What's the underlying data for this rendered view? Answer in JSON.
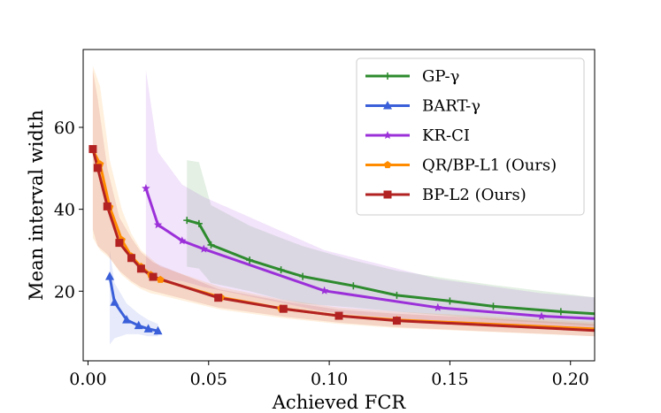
{
  "chart_data": {
    "type": "line",
    "title": "",
    "xlabel": "Achieved FCR",
    "ylabel": "Mean interval width",
    "xlim": [
      -0.002,
      0.21
    ],
    "ylim": [
      3,
      79
    ],
    "xticks": [
      0.0,
      0.05,
      0.1,
      0.15,
      0.2
    ],
    "xtick_labels": [
      "0.00",
      "0.05",
      "0.10",
      "0.15",
      "0.20"
    ],
    "yticks": [
      20,
      40,
      60
    ],
    "ytick_labels": [
      "20",
      "40",
      "60"
    ],
    "grid": false,
    "legend_position": "top-right",
    "series": [
      {
        "name": "GP-γ",
        "color": "#2e8b2e",
        "marker": "plus",
        "x": [
          0.041,
          0.046,
          0.051,
          0.067,
          0.08,
          0.089,
          0.11,
          0.128,
          0.15,
          0.168,
          0.196,
          0.21
        ],
        "y": [
          37.3,
          36.5,
          31.3,
          27.6,
          25.2,
          23.6,
          21.3,
          19.0,
          17.6,
          16.3,
          15.0,
          14.5
        ],
        "band_upper": [
          52.0,
          51.5,
          41.0,
          36.0,
          33.0,
          31.0,
          27.5,
          25.0,
          23.0,
          21.5,
          19.5,
          18.5
        ],
        "band_lower": [
          26.0,
          25.5,
          22.0,
          20.0,
          18.0,
          17.0,
          16.0,
          15.0,
          14.0,
          13.0,
          12.0,
          11.5
        ]
      },
      {
        "name": "BART-γ",
        "color": "#3a5fd9",
        "marker": "triangle",
        "x": [
          0.009,
          0.011,
          0.016,
          0.021,
          0.025,
          0.029
        ],
        "y": [
          23.6,
          17.3,
          13.0,
          11.6,
          10.8,
          10.3
        ],
        "band_upper": [
          30.0,
          22.0,
          17.0,
          14.5,
          13.0,
          12.0
        ],
        "band_lower": [
          7.0,
          8.5,
          9.5,
          9.5,
          9.0,
          9.0
        ]
      },
      {
        "name": "KR-CI",
        "color": "#9b30d9",
        "marker": "star",
        "x": [
          0.024,
          0.029,
          0.039,
          0.048,
          0.098,
          0.145,
          0.188,
          0.21
        ],
        "y": [
          45.1,
          36.2,
          32.3,
          30.3,
          20.1,
          16.0,
          13.9,
          13.3
        ],
        "band_upper": [
          74.0,
          54.0,
          46.0,
          43.0,
          30.0,
          23.0,
          19.5,
          18.5
        ],
        "band_lower": [
          24.0,
          23.0,
          22.5,
          21.0,
          15.0,
          12.5,
          11.0,
          10.5
        ]
      },
      {
        "name": "QR/BP-L1 (Ours)",
        "color": "#ff8c00",
        "marker": "pentagon",
        "x": [
          0.002,
          0.005,
          0.009,
          0.014,
          0.018,
          0.022,
          0.026,
          0.03,
          0.055,
          0.08,
          0.104,
          0.128,
          0.21
        ],
        "y": [
          54.5,
          51.0,
          40.5,
          32.5,
          28.5,
          26.0,
          24.0,
          22.8,
          18.5,
          15.8,
          14.0,
          13.0,
          10.8
        ],
        "band_upper": [
          75.0,
          70.0,
          52.0,
          40.0,
          34.0,
          30.0,
          28.0,
          26.0,
          21.0,
          18.0,
          16.0,
          15.0,
          12.5
        ],
        "band_lower": [
          33.0,
          30.0,
          28.0,
          24.0,
          22.0,
          20.5,
          19.5,
          19.0,
          15.5,
          13.5,
          12.0,
          11.0,
          9.0
        ]
      },
      {
        "name": "BP-L2 (Ours)",
        "color": "#b22222",
        "marker": "square",
        "x": [
          0.002,
          0.004,
          0.008,
          0.013,
          0.018,
          0.022,
          0.027,
          0.054,
          0.081,
          0.104,
          0.128,
          0.21
        ],
        "y": [
          54.7,
          50.1,
          40.7,
          31.8,
          28.1,
          25.5,
          23.5,
          18.4,
          15.7,
          14.0,
          12.8,
          10.4
        ],
        "band_upper": [
          74.0,
          67.0,
          50.0,
          38.0,
          33.0,
          29.5,
          27.0,
          20.5,
          17.5,
          15.5,
          14.5,
          12.0
        ],
        "band_lower": [
          35.0,
          31.0,
          29.0,
          25.0,
          22.5,
          21.0,
          20.0,
          16.0,
          13.8,
          12.3,
          11.2,
          9.0
        ]
      }
    ]
  }
}
